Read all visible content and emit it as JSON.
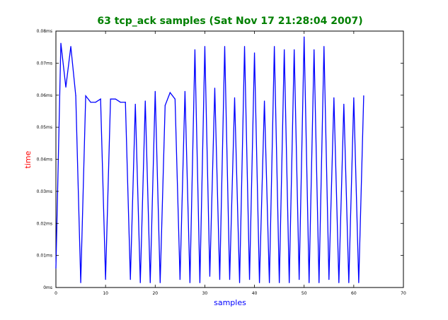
{
  "chart_data": {
    "type": "line",
    "title": "63 tcp_ack samples (Sat Nov 17 21:28:04 2007)",
    "xlabel": "samples",
    "ylabel": "time",
    "xlim": [
      0,
      70
    ],
    "ylim": [
      0,
      0.08
    ],
    "x_ticks": [
      0,
      10,
      20,
      30,
      40,
      50,
      60,
      70
    ],
    "x_tick_labels": [
      "0",
      "10",
      "20",
      "30",
      "40",
      "50",
      "60",
      "70"
    ],
    "y_ticks": [
      0,
      0.01,
      0.02,
      0.03,
      0.04,
      0.05,
      0.06,
      0.07,
      0.08
    ],
    "y_tick_labels": [
      "0ms",
      "0.01ms",
      "0.02ms",
      "0.03ms",
      "0.04ms",
      "0.05ms",
      "0.06ms",
      "0.07ms",
      "0.08ms"
    ],
    "grid": false,
    "legend": "none",
    "series": [
      {
        "color": "#0000ff",
        "x": [
          0,
          1,
          2,
          3,
          4,
          5,
          6,
          7,
          8,
          9,
          10,
          11,
          12,
          13,
          14,
          15,
          16,
          17,
          18,
          19,
          20,
          21,
          22,
          23,
          24,
          25,
          26,
          27,
          28,
          29,
          30,
          31,
          32,
          33,
          34,
          35,
          36,
          37,
          38,
          39,
          40,
          41,
          42,
          43,
          44,
          45,
          46,
          47,
          48,
          49,
          50,
          51,
          52,
          53,
          54,
          55,
          56,
          57,
          58,
          59,
          60,
          61,
          62
        ],
        "values": [
          0.006,
          0.0762,
          0.0625,
          0.0752,
          0.0598,
          0.0015,
          0.0598,
          0.0578,
          0.0578,
          0.0588,
          0.0025,
          0.0588,
          0.0588,
          0.0578,
          0.0578,
          0.0025,
          0.0572,
          0.0015,
          0.0582,
          0.0015,
          0.0612,
          0.0015,
          0.0568,
          0.0608,
          0.0588,
          0.0025,
          0.0612,
          0.0015,
          0.0742,
          0.0015,
          0.0752,
          0.0035,
          0.0622,
          0.0025,
          0.0752,
          0.0025,
          0.0592,
          0.0015,
          0.0752,
          0.0025,
          0.0732,
          0.0015,
          0.0582,
          0.0015,
          0.0752,
          0.0015,
          0.0742,
          0.0015,
          0.0742,
          0.0025,
          0.0782,
          0.0015,
          0.0742,
          0.0015,
          0.0752,
          0.0025,
          0.0592,
          0.0015,
          0.0572,
          0.0015,
          0.0592,
          0.0015,
          0.0598
        ]
      }
    ],
    "colors": {
      "title": "#008000",
      "xlabel": "#0000ff",
      "ylabel": "#ff0000",
      "line": "#0000ff",
      "axes": "#000000"
    }
  }
}
